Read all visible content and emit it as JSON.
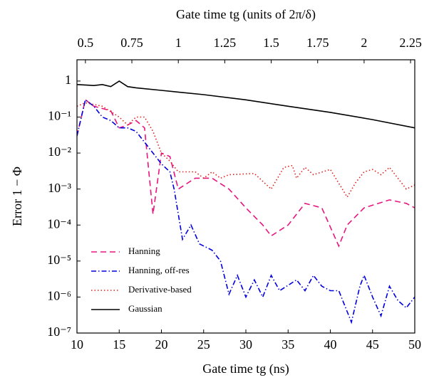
{
  "chart_data": {
    "type": "line",
    "xlabel": "Gate time tg (ns)",
    "x2label": "Gate time tg (units of 2π/δ)",
    "ylabel": "Error 1 − Φ",
    "xlim": [
      10,
      50
    ],
    "xticks": [
      10,
      15,
      20,
      25,
      30,
      35,
      40,
      45,
      50
    ],
    "x2lim": [
      0.4545,
      2.2727
    ],
    "x2ticks": [
      0.5,
      0.75,
      1,
      1.25,
      1.5,
      1.75,
      2,
      2.25
    ],
    "ylim": [
      1e-07,
      3.9
    ],
    "yscale": "log",
    "yticks": [
      {
        "value": 1e-07,
        "label": "10⁻⁷"
      },
      {
        "value": 1e-06,
        "label": "10⁻⁶"
      },
      {
        "value": 1e-05,
        "label": "10⁻⁵"
      },
      {
        "value": 0.0001,
        "label": "10⁻⁴"
      },
      {
        "value": 0.001,
        "label": "10⁻³"
      },
      {
        "value": 0.01,
        "label": "10⁻²"
      },
      {
        "value": 0.1,
        "label": "10⁻¹"
      },
      1
    ],
    "legend": "lower left",
    "series": [
      {
        "name": "Hanning",
        "color": "#e8157f",
        "dash": "8,5",
        "x": [
          10,
          11,
          12,
          14,
          15,
          16,
          17,
          18,
          19,
          20,
          21,
          22,
          24,
          26,
          28,
          30,
          32,
          33,
          35,
          37,
          39,
          41,
          42,
          44,
          47,
          49,
          50
        ],
        "values": [
          0.03,
          0.3,
          0.2,
          0.15,
          0.05,
          0.06,
          0.08,
          0.05,
          0.0002,
          0.01,
          0.008,
          0.001,
          0.002,
          0.002,
          0.001,
          0.0003,
          0.0001,
          5e-05,
          0.0001,
          0.0004,
          0.0003,
          2.6e-05,
          0.0001,
          0.0003,
          0.0005,
          0.0004,
          0.0003
        ]
      },
      {
        "name": "Hanning, off-res",
        "color": "#0000e0",
        "dash": "7,3,1.5,3",
        "x": [
          10,
          11,
          12,
          13,
          14,
          15,
          16,
          17,
          18,
          19,
          20,
          21,
          21.5,
          22.5,
          23.5,
          24.5,
          26,
          27,
          28,
          29,
          30,
          31,
          32,
          33,
          34,
          36,
          37,
          38,
          39,
          40,
          41,
          42.5,
          43.5,
          44,
          45,
          46,
          47,
          48,
          49,
          50
        ],
        "values": [
          0.03,
          0.3,
          0.2,
          0.1,
          0.08,
          0.05,
          0.05,
          0.04,
          0.02,
          0.01,
          0.005,
          0.003,
          0.001,
          4e-05,
          0.0001,
          3e-05,
          2e-05,
          1e-05,
          1.2e-06,
          4e-06,
          1e-06,
          3e-06,
          1e-06,
          4e-06,
          1.5e-06,
          3e-06,
          1.5e-06,
          4e-06,
          2e-06,
          1.5e-06,
          1.5e-06,
          2e-07,
          2e-06,
          4e-06,
          1e-06,
          3e-07,
          2e-06,
          8e-07,
          5e-07,
          1e-06
        ]
      },
      {
        "name": "Derivative-based",
        "color": "#e0201a",
        "dash": "1.5,3",
        "x": [
          10,
          11,
          13,
          15,
          16,
          17,
          18,
          19,
          20,
          21,
          22,
          24,
          25,
          26,
          27,
          28,
          31,
          33,
          34.5,
          35.5,
          36,
          37,
          38,
          40,
          42,
          43,
          44,
          45,
          46,
          47,
          48,
          49,
          50
        ],
        "values": [
          0.2,
          0.25,
          0.2,
          0.1,
          0.06,
          0.1,
          0.1,
          0.04,
          0.01,
          0.006,
          0.003,
          0.003,
          0.002,
          0.003,
          0.002,
          0.0025,
          0.0027,
          0.001,
          0.004,
          0.0045,
          0.002,
          0.004,
          0.0025,
          0.0035,
          0.0006,
          0.0015,
          0.003,
          0.0035,
          0.0025,
          0.004,
          0.002,
          0.001,
          0.0013
        ]
      },
      {
        "name": "Gaussian",
        "color": "#000000",
        "dash": "",
        "x": [
          10,
          12,
          13,
          14,
          15,
          16,
          17,
          20,
          25,
          30,
          35,
          40,
          45,
          50
        ],
        "values": [
          0.8,
          0.75,
          0.8,
          0.7,
          1.0,
          0.7,
          0.65,
          0.55,
          0.42,
          0.3,
          0.2,
          0.135,
          0.085,
          0.05
        ]
      }
    ]
  }
}
